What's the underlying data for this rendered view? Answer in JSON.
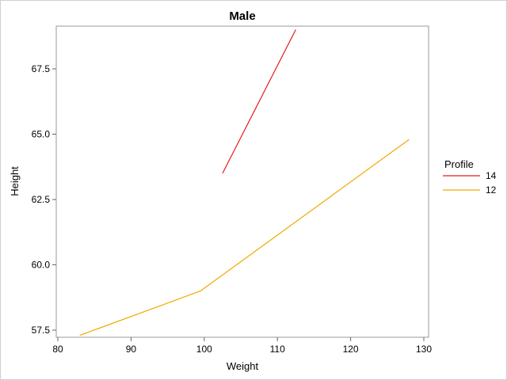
{
  "chart_data": {
    "type": "line",
    "title": "Male",
    "xlabel": "Weight",
    "ylabel": "Height",
    "xlim": [
      80,
      130
    ],
    "ylim": [
      57.5,
      69
    ],
    "x_ticks": [
      80,
      90,
      100,
      110,
      120,
      130
    ],
    "y_ticks": [
      57.5,
      60.0,
      62.5,
      65.0,
      67.5
    ],
    "grid": false,
    "legend": {
      "title": "Profile",
      "placement": "right"
    },
    "series": [
      {
        "name": "14",
        "color": "#e31a1c",
        "points": [
          [
            102.5,
            63.5
          ],
          [
            112.5,
            69.0
          ]
        ]
      },
      {
        "name": "12",
        "color": "#f2a900",
        "points": [
          [
            83.0,
            57.3
          ],
          [
            99.5,
            59.0
          ],
          [
            128.0,
            64.8
          ]
        ]
      }
    ]
  }
}
